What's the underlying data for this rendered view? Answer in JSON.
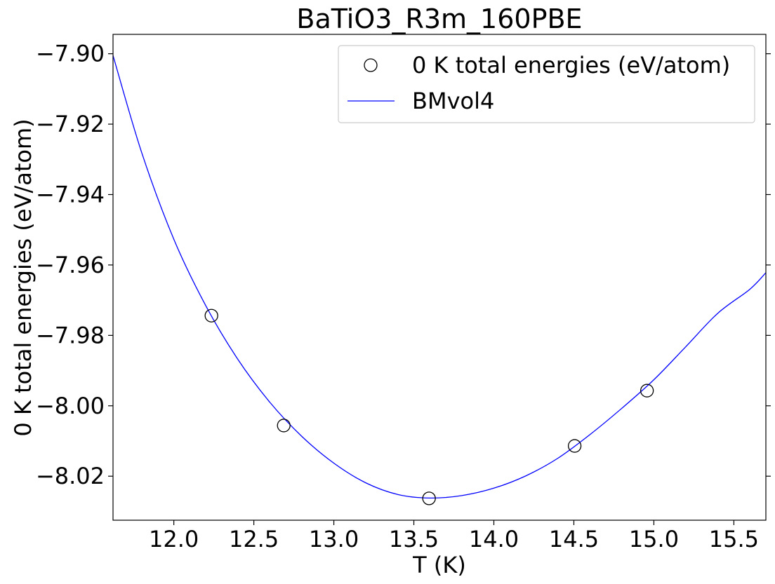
{
  "chart_data": {
    "type": "scatter",
    "title": "BaTiO3_R3m_160PBE",
    "xlabel": "T (K)",
    "ylabel": "0 K total energies (eV/atom)",
    "xlim": [
      11.62,
      15.7
    ],
    "ylim": [
      -8.0325,
      -7.8945
    ],
    "xticks": [
      12.0,
      12.5,
      13.0,
      13.5,
      14.0,
      14.5,
      15.0,
      15.5
    ],
    "xtick_labels": [
      "12.0",
      "12.5",
      "13.0",
      "13.5",
      "14.0",
      "14.5",
      "15.0",
      "15.5"
    ],
    "yticks": [
      -7.9,
      -7.92,
      -7.94,
      -7.96,
      -7.98,
      -8.0,
      -8.02
    ],
    "ytick_labels": [
      "−7.90",
      "−7.92",
      "−7.94",
      "−7.96",
      "−7.98",
      "−8.00",
      "−8.02"
    ],
    "grid": false,
    "legend_position": "top-right",
    "series": [
      {
        "name": "0 K total energies (eV/atom)",
        "kind": "scatter",
        "marker": "open-circle",
        "color": "#000000",
        "x": [
          12.235,
          12.687,
          13.595,
          14.505,
          14.957
        ],
        "y": [
          -7.9744,
          -8.0056,
          -8.0263,
          -8.0114,
          -7.9957
        ]
      },
      {
        "name": "BMvol4",
        "kind": "line",
        "color": "#0000ff",
        "x": [
          11.62,
          11.8,
          12.0,
          12.2,
          12.4,
          12.6,
          12.8,
          13.0,
          13.2,
          13.4,
          13.6,
          13.8,
          14.0,
          14.2,
          14.4,
          14.6,
          14.8,
          15.0,
          15.2,
          15.4,
          15.6,
          15.7
        ],
        "y": [
          -7.9005,
          -7.9282,
          -7.9527,
          -7.9716,
          -7.9868,
          -7.999,
          -8.0087,
          -8.0163,
          -8.0219,
          -8.0252,
          -8.0262,
          -8.0255,
          -8.0234,
          -8.0199,
          -8.0149,
          -8.0082,
          -8.0007,
          -7.9926,
          -7.9832,
          -7.9737,
          -7.9669,
          -7.9622
        ]
      }
    ]
  }
}
